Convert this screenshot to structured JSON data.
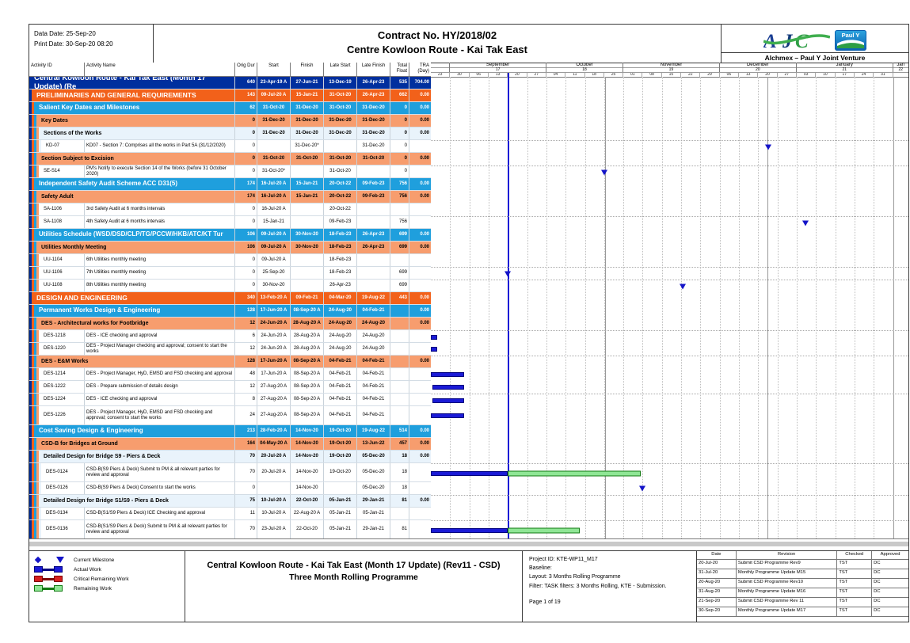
{
  "header": {
    "data_date": "Data Date: 25-Sep-20",
    "print_date": "Print Date: 30-Sep-20 08:20",
    "title_line1": "Contract No. HY/2018/02",
    "title_line2": "Centre Kowloon Route - Kai Tak East",
    "logo_ajc": "AJC",
    "logo_pauly": "Paul Y",
    "joint_venture": "Alchmex – Paul Y Joint Venture"
  },
  "columns": [
    "Activity ID",
    "Activity Name",
    "Orig Dur",
    "Start",
    "Finish",
    "Late Start",
    "Late Finish",
    "Total Float",
    "TRA (Day)"
  ],
  "timeline": {
    "lead_tick": "23",
    "months": [
      {
        "label": "September",
        "num": "17",
        "ticks": [
          "30",
          "06",
          "13",
          "20",
          "27"
        ]
      },
      {
        "label": "October",
        "num": "18",
        "ticks": [
          "04",
          "11",
          "18",
          "25"
        ]
      },
      {
        "label": "November",
        "num": "19",
        "ticks": [
          "01",
          "08",
          "15",
          "22",
          "29"
        ]
      },
      {
        "label": "December",
        "num": "20",
        "ticks": [
          "06",
          "13",
          "20",
          "27"
        ]
      },
      {
        "label": "January",
        "num": "21",
        "ticks": [
          "03",
          "10",
          "17",
          "24",
          "31"
        ]
      }
    ],
    "tail": {
      "label": "Jan",
      "num": "22"
    }
  },
  "gantt": {
    "data_date_pct": 16.1,
    "tick_pct": 4.0323,
    "solid_lines_pct": [
      36.5,
      70.5,
      96.77
    ]
  },
  "colors": {
    "navy": "#002f9e",
    "orange": "#f2611a",
    "sky": "#1f9fdd",
    "salmon": "#f79d6e",
    "pale": "#e9f3fb",
    "actual": "#1a1ad6",
    "actual_border": "#00007e",
    "remaining_fill": "#8fe695",
    "remaining_border": "#127a12",
    "critical": "#d51f1f",
    "data_date_line": "#1a1ad6"
  },
  "rows": [
    {
      "type": "l0",
      "name": "Central Kowloon Route - Kai Tak East (Month 17 Update) (Re",
      "od": "640",
      "start": "23-Apr-19 A",
      "finish": "27-Jun-21",
      "ls": "13-Dec-19",
      "lf": "26-Apr-23",
      "tf": "535",
      "tra": "704.00",
      "strips": []
    },
    {
      "type": "l1",
      "name": "PRELIMINARIES AND GENERAL REQUIREMENTS",
      "od": "143",
      "start": "09-Jul-20 A",
      "finish": "15-Jan-21",
      "ls": "31-Oct-20",
      "lf": "26-Apr-23",
      "tf": "662",
      "tra": "0.00",
      "strips": [
        "navy"
      ]
    },
    {
      "type": "l2",
      "name": "Salient Key Dates and Milestones",
      "od": "62",
      "start": "31-Oct-20",
      "finish": "31-Dec-20",
      "ls": "31-Oct-20",
      "lf": "31-Dec-20",
      "tf": "0",
      "tra": "0.00",
      "strips": [
        "navy",
        "orange"
      ]
    },
    {
      "type": "l3",
      "name": "Key Dates",
      "od": "0",
      "start": "31-Dec-20",
      "finish": "31-Dec-20",
      "ls": "31-Dec-20",
      "lf": "31-Dec-20",
      "tf": "0",
      "tra": "0.00",
      "strips": [
        "navy",
        "orange",
        "sky"
      ]
    },
    {
      "type": "l4",
      "name": "Sections of the Works",
      "od": "0",
      "start": "31-Dec-20",
      "finish": "31-Dec-20",
      "ls": "31-Dec-20",
      "lf": "31-Dec-20",
      "tf": "0",
      "tra": "0.00",
      "strips": [
        "navy",
        "orange",
        "sky",
        "salmon"
      ]
    },
    {
      "type": "leaf",
      "id": "KD-07",
      "name": "KD07 - Section 7: Comprises all the works in Part 5A (31/12/2020)",
      "od": "0",
      "start": "",
      "finish": "31-Dec-20*",
      "ls": "",
      "lf": "31-Dec-20",
      "tf": "0",
      "tra": "",
      "strips": [
        "navy",
        "orange",
        "sky",
        "salmon",
        "pale"
      ],
      "ms": 70.6,
      "guide": true
    },
    {
      "type": "l3",
      "name": "Section Subject to Excision",
      "od": "0",
      "start": "31-Oct-20",
      "finish": "31-Oct-20",
      "ls": "31-Oct-20",
      "lf": "31-Oct-20",
      "tf": "0",
      "tra": "0.00",
      "strips": [
        "navy",
        "orange",
        "sky"
      ]
    },
    {
      "type": "leaf",
      "id": "SE-S14",
      "name": "PM's Notify to execute Section 14 of the Works (before 31 October 2020)",
      "od": "0",
      "start": "31-Oct-20*",
      "finish": "",
      "ls": "31-Oct-20",
      "lf": "",
      "tf": "0",
      "tra": "",
      "strips": [
        "navy",
        "orange",
        "sky",
        "salmon"
      ],
      "ms": 36.3,
      "guide": true
    },
    {
      "type": "l2",
      "name": "Independent Safety Audit Scheme ACC D31(5)",
      "od": "174",
      "start": "16-Jul-20 A",
      "finish": "15-Jan-21",
      "ls": "20-Oct-22",
      "lf": "09-Feb-23",
      "tf": "756",
      "tra": "0.00",
      "strips": [
        "navy",
        "orange"
      ]
    },
    {
      "type": "l3",
      "name": "Safety Adult",
      "od": "174",
      "start": "16-Jul-20 A",
      "finish": "15-Jan-21",
      "ls": "20-Oct-22",
      "lf": "09-Feb-23",
      "tf": "756",
      "tra": "0.00",
      "strips": [
        "navy",
        "orange",
        "sky"
      ]
    },
    {
      "type": "leaf",
      "id": "SA-1106",
      "name": "3rd Safety Audit at 6 months intervals",
      "od": "0",
      "start": "16-Jul-20 A",
      "finish": "",
      "ls": "20-Oct-22",
      "lf": "",
      "tf": "",
      "tra": "",
      "strips": [
        "navy",
        "orange",
        "sky",
        "salmon"
      ]
    },
    {
      "type": "leaf",
      "id": "SA-1108",
      "name": "4th Safety Audit at 6 months intervals",
      "od": "0",
      "start": "15-Jan-21",
      "finish": "",
      "ls": "09-Feb-23",
      "lf": "",
      "tf": "756",
      "tra": "",
      "strips": [
        "navy",
        "orange",
        "sky",
        "salmon"
      ],
      "ms": 78.4,
      "guide": true
    },
    {
      "type": "l2",
      "name": "Utilities Schedule (WSD/DSD/CLP/TG/PCCW/HKB/ATC/KT Tur",
      "od": "106",
      "start": "09-Jul-20 A",
      "finish": "30-Nov-20",
      "ls": "18-Feb-23",
      "lf": "26-Apr-23",
      "tf": "699",
      "tra": "0.00",
      "strips": [
        "navy",
        "orange"
      ]
    },
    {
      "type": "l3",
      "name": "Utilities Monthly Meeting",
      "od": "106",
      "start": "09-Jul-20 A",
      "finish": "30-Nov-20",
      "ls": "18-Feb-23",
      "lf": "26-Apr-23",
      "tf": "699",
      "tra": "0.00",
      "strips": [
        "navy",
        "orange",
        "sky"
      ]
    },
    {
      "type": "leaf",
      "id": "UU-1104",
      "name": "6th Utilities monthly meeting",
      "od": "0",
      "start": "09-Jul-20 A",
      "finish": "",
      "ls": "18-Feb-23",
      "lf": "",
      "tf": "",
      "tra": "",
      "strips": [
        "navy",
        "orange",
        "sky",
        "salmon"
      ]
    },
    {
      "type": "leaf",
      "id": "UU-1106",
      "name": "7th Utilities monthly meeting",
      "od": "0",
      "start": "25-Sep-20",
      "finish": "",
      "ls": "18-Feb-23",
      "lf": "",
      "tf": "699",
      "tra": "",
      "strips": [
        "navy",
        "orange",
        "sky",
        "salmon"
      ],
      "ms": 16.1,
      "guide": true
    },
    {
      "type": "leaf",
      "id": "UU-1108",
      "name": "8th Utilities monthly meeting",
      "od": "0",
      "start": "30-Nov-20",
      "finish": "",
      "ls": "26-Apr-23",
      "lf": "",
      "tf": "699",
      "tra": "",
      "strips": [
        "navy",
        "orange",
        "sky",
        "salmon"
      ],
      "ms": 52.7,
      "guide": true
    },
    {
      "type": "l1",
      "name": "DESIGN AND ENGINEERING",
      "od": "340",
      "start": "13-Feb-20 A",
      "finish": "09-Feb-21",
      "ls": "04-Mar-20",
      "lf": "19-Aug-22",
      "tf": "443",
      "tra": "0.00",
      "strips": [
        "navy"
      ]
    },
    {
      "type": "l2",
      "name": "Permanent Works Design & Engineering",
      "od": "128",
      "start": "17-Jun-20 A",
      "finish": "08-Sep-20 A",
      "ls": "24-Aug-20",
      "lf": "04-Feb-21",
      "tf": "",
      "tra": "0.00",
      "strips": [
        "navy",
        "orange"
      ]
    },
    {
      "type": "l3",
      "name": "DES - Architectural works for Footbridge",
      "od": "12",
      "start": "24-Jun-20 A",
      "finish": "28-Aug-20 A",
      "ls": "24-Aug-20",
      "lf": "24-Aug-20",
      "tf": "",
      "tra": "0.00",
      "strips": [
        "navy",
        "orange",
        "sky"
      ]
    },
    {
      "type": "leaf",
      "id": "DES-1218",
      "name": "DES - ICE checking and approval",
      "od": "6",
      "start": "24-Jun-20 A",
      "finish": "28-Aug-20 A",
      "ls": "24-Aug-20",
      "lf": "24-Aug-20",
      "tf": "",
      "tra": "",
      "strips": [
        "navy",
        "orange",
        "sky",
        "salmon"
      ],
      "bars": [
        {
          "t": "actual",
          "s": 0,
          "e": 1.3
        }
      ],
      "guide": true
    },
    {
      "type": "leaf",
      "id": "DES-1220",
      "name": "DES - Project Manager checking and approval; consent to start the works",
      "od": "12",
      "start": "24-Jun-20 A",
      "finish": "28-Aug-20 A",
      "ls": "24-Aug-20",
      "lf": "24-Aug-20",
      "tf": "",
      "tra": "",
      "strips": [
        "navy",
        "orange",
        "sky",
        "salmon"
      ],
      "bars": [
        {
          "t": "actual",
          "s": 0,
          "e": 1.3
        }
      ]
    },
    {
      "type": "l3",
      "name": "DES - E&M Works",
      "od": "128",
      "start": "17-Jun-20 A",
      "finish": "08-Sep-20 A",
      "ls": "04-Feb-21",
      "lf": "04-Feb-21",
      "tf": "",
      "tra": "0.00",
      "strips": [
        "navy",
        "orange",
        "sky"
      ],
      "guide": true
    },
    {
      "type": "leaf",
      "id": "DES-1214",
      "name": "DES - Project Manager, HyD, EMSD and FSD checking and approval",
      "od": "48",
      "start": "17-Jun-20 A",
      "finish": "08-Sep-20 A",
      "ls": "04-Feb-21",
      "lf": "04-Feb-21",
      "tf": "",
      "tra": "",
      "strips": [
        "navy",
        "orange",
        "sky",
        "salmon"
      ],
      "bars": [
        {
          "t": "actual",
          "s": 0,
          "e": 7.0
        }
      ]
    },
    {
      "type": "leaf",
      "id": "DES-1222",
      "name": "DES - Prepare submission of details design",
      "od": "12",
      "start": "27-Aug-20 A",
      "finish": "08-Sep-20 A",
      "ls": "04-Feb-21",
      "lf": "04-Feb-21",
      "tf": "",
      "tra": "",
      "strips": [
        "navy",
        "orange",
        "sky",
        "salmon"
      ],
      "bars": [
        {
          "t": "actual",
          "s": 0.4,
          "e": 7.0
        }
      ]
    },
    {
      "type": "leaf",
      "id": "DES-1224",
      "name": "DES - ICE checking and approval",
      "od": "8",
      "start": "27-Aug-20 A",
      "finish": "08-Sep-20 A",
      "ls": "04-Feb-21",
      "lf": "04-Feb-21",
      "tf": "",
      "tra": "",
      "strips": [
        "navy",
        "orange",
        "sky",
        "salmon"
      ],
      "bars": [
        {
          "t": "actual",
          "s": 0.4,
          "e": 7.0
        }
      ],
      "guide": true
    },
    {
      "type": "leaf",
      "id": "DES-1226",
      "name": "DES - Project Manager, HyD, EMSD and FSD checking and approval; consent to start the works",
      "od": "24",
      "start": "27-Aug-20 A",
      "finish": "08-Sep-20 A",
      "ls": "04-Feb-21",
      "lf": "04-Feb-21",
      "tf": "",
      "tra": "",
      "strips": [
        "navy",
        "orange",
        "sky",
        "salmon"
      ],
      "bars": [
        {
          "t": "actual",
          "s": 0,
          "e": 7.0
        }
      ],
      "tall": true
    },
    {
      "type": "l2",
      "name": "Cost Saving Design & Engineering",
      "od": "213",
      "start": "28-Feb-20 A",
      "finish": "14-Nov-20",
      "ls": "19-Oct-20",
      "lf": "19-Aug-22",
      "tf": "514",
      "tra": "0.00",
      "strips": [
        "navy",
        "orange"
      ]
    },
    {
      "type": "l3",
      "name": "CSD-B for Bridges at Ground",
      "od": "164",
      "start": "04-May-20 A",
      "finish": "14-Nov-20",
      "ls": "19-Oct-20",
      "lf": "13-Jun-22",
      "tf": "457",
      "tra": "0.00",
      "strips": [
        "navy",
        "orange",
        "sky"
      ]
    },
    {
      "type": "l4",
      "name": "Detailed Design for Bridge S9 - Piers & Deck",
      "od": "70",
      "start": "20-Jul-20 A",
      "finish": "14-Nov-20",
      "ls": "19-Oct-20",
      "lf": "05-Dec-20",
      "tf": "18",
      "tra": "0.00",
      "strips": [
        "navy",
        "orange",
        "sky",
        "salmon"
      ]
    },
    {
      "type": "leaf",
      "id": "DES-0124",
      "name": "CSD-B(S9 Piers & Deck) Submit to PM & all relevant parties for review and approval",
      "od": "70",
      "start": "20-Jul-20 A",
      "finish": "14-Nov-20",
      "ls": "19-Oct-20",
      "lf": "05-Dec-20",
      "tf": "18",
      "tra": "",
      "strips": [
        "navy",
        "orange",
        "sky",
        "salmon",
        "pale"
      ],
      "bars": [
        {
          "t": "actual",
          "s": 0,
          "e": 16.1
        },
        {
          "t": "remaining",
          "s": 16.1,
          "e": 44.0
        }
      ],
      "tall": true,
      "guide": true
    },
    {
      "type": "leaf",
      "id": "DES-0126",
      "name": "CSD-B(S9 Piers & Deck) Consent to start the works",
      "od": "0",
      "start": "",
      "finish": "14-Nov-20",
      "ls": "",
      "lf": "05-Dec-20",
      "tf": "18",
      "tra": "",
      "strips": [
        "navy",
        "orange",
        "sky",
        "salmon",
        "pale"
      ],
      "ms": 44.2
    },
    {
      "type": "l4",
      "name": "Detailed Design for Bridge S1/S9 - Piers & Deck",
      "od": "75",
      "start": "10-Jul-20 A",
      "finish": "22-Oct-20",
      "ls": "05-Jan-21",
      "lf": "29-Jan-21",
      "tf": "81",
      "tra": "0.00",
      "strips": [
        "navy",
        "orange",
        "sky",
        "salmon"
      ],
      "guide": true
    },
    {
      "type": "leaf",
      "id": "DES-0134",
      "name": "CSD-B(S1/S9 Piers & Deck) ICE Checking and approval",
      "od": "11",
      "start": "10-Jul-20 A",
      "finish": "22-Aug-20 A",
      "ls": "05-Jan-21",
      "lf": "05-Jan-21",
      "tf": "",
      "tra": "",
      "strips": [
        "navy",
        "orange",
        "sky",
        "salmon",
        "pale"
      ]
    },
    {
      "type": "leaf",
      "id": "DES-0136",
      "name": "CSD-B(S1/S9 Piers & Deck) Submit to PM & all relevant parties for review and approval",
      "od": "70",
      "start": "23-Jul-20 A",
      "finish": "22-Oct-20",
      "ls": "05-Jan-21",
      "lf": "29-Jan-21",
      "tf": "81",
      "tra": "",
      "strips": [
        "navy",
        "orange",
        "sky",
        "salmon",
        "pale"
      ],
      "bars": [
        {
          "t": "actual",
          "s": 0,
          "e": 16.1
        },
        {
          "t": "remaining",
          "s": 16.1,
          "e": 31.2
        }
      ],
      "tall": true,
      "guide": true
    }
  ],
  "legend": [
    {
      "label": "Current Milestone",
      "type": "milestone"
    },
    {
      "label": "Actual Work",
      "type": "bar",
      "fill": "#1a1ad6",
      "border": "#00007e"
    },
    {
      "label": "Critical Remaining Work",
      "type": "bar",
      "fill": "#d51f1f",
      "border": "#7e0000"
    },
    {
      "label": "Remaining Work",
      "type": "bar",
      "fill": "#8fe695",
      "border": "#127a12"
    }
  ],
  "footer": {
    "center_title_line1": "Central Kowloon Route - Kai Tak East (Month 17 Update) (Rev11 - CSD)",
    "center_title_line2": "Three Month Rolling Programme",
    "info": {
      "project_id": "Project ID: KTE-WP11_M17",
      "baseline": "Baseline:",
      "layout": "Layout: 3 Months Rolling Programme",
      "filter": "Filter: TASK filters: 3 Months Rolling, KTE - Submission.",
      "page": "Page 1 of 19"
    },
    "revisions": {
      "headers": [
        "Date",
        "Revision",
        "Checked",
        "Approved"
      ],
      "rows": [
        [
          "20-Jul-20",
          "Submit CSD Programme Rev9",
          "TST",
          "DC"
        ],
        [
          "31-Jul-20",
          "Monthly Programme Update M15",
          "TST",
          "DC"
        ],
        [
          "20-Aug-20",
          "Submit CSD Programme Rev10",
          "TST",
          "DC"
        ],
        [
          "31-Aug-20",
          "Monthly Programme Update M16",
          "TST",
          "DC"
        ],
        [
          "21-Sep-20",
          "Submit CSD Programme Rev 11",
          "TST",
          "DC"
        ],
        [
          "30-Sep-20",
          "Monthly Programme Update M17",
          "TST",
          "DC"
        ]
      ]
    }
  }
}
